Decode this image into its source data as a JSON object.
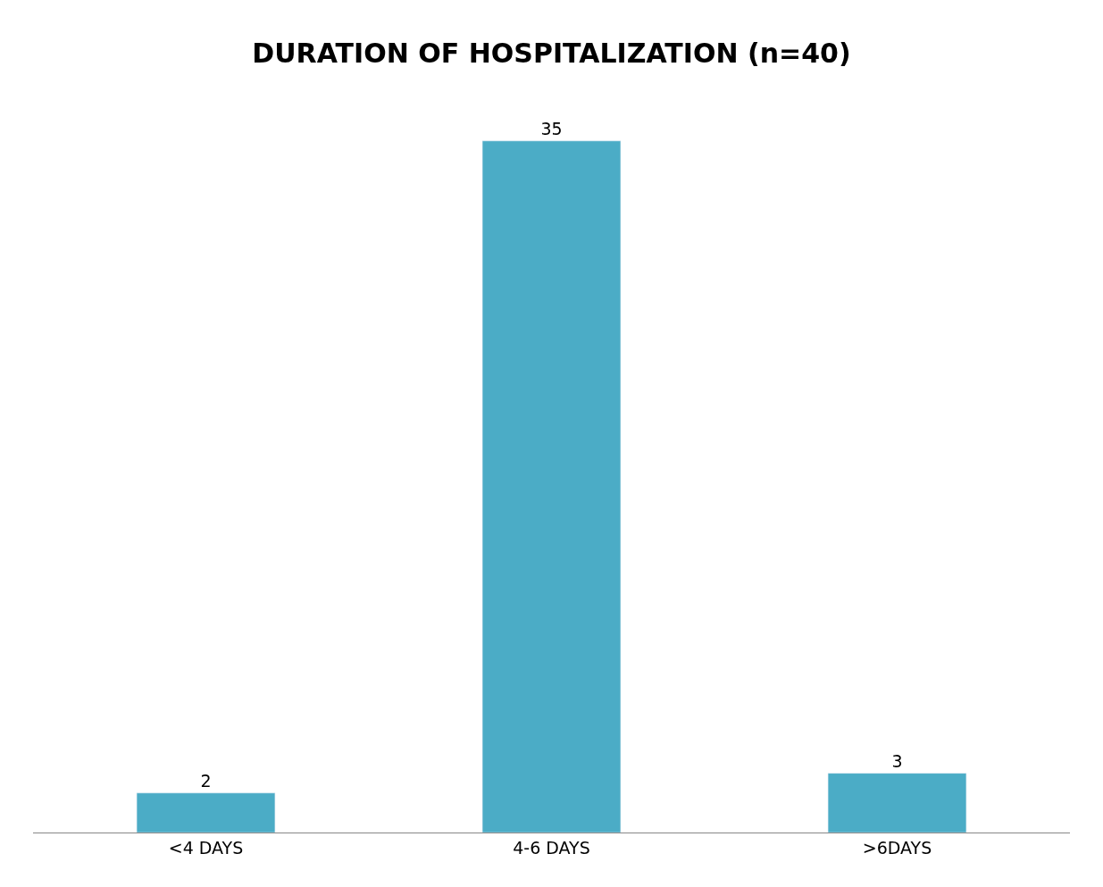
{
  "chart_data": {
    "type": "bar",
    "title": "DURATION OF HOSPITALIZATION (n=40)",
    "categories": [
      "<4 DAYS",
      "4-6 DAYS",
      ">6DAYS"
    ],
    "values": [
      2,
      35,
      3
    ],
    "color": "#4bacc6",
    "data_labels": true
  }
}
